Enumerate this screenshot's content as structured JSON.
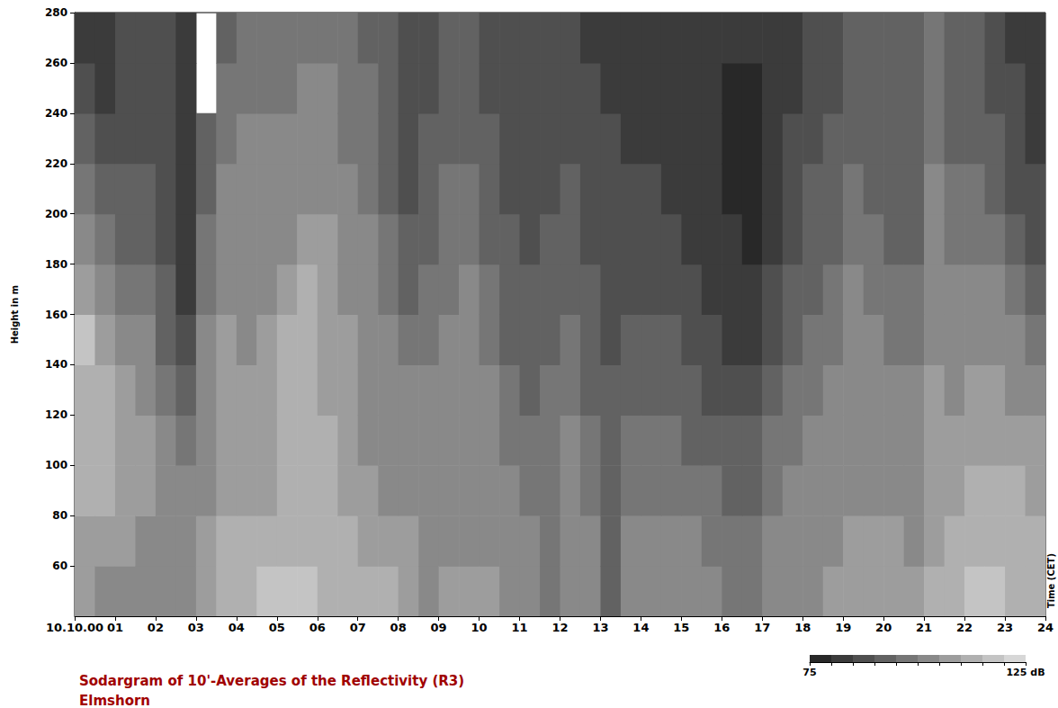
{
  "chart_data": {
    "type": "heatmap",
    "title": "Sodargram of 10'-Averages of the Reflectivity (R3)",
    "subtitle": "Elmshorn",
    "xlabel": "Time (CET)",
    "ylabel": "Height in m",
    "xlim": [
      0,
      24
    ],
    "xticks": [
      {
        "value": 0,
        "label": "10.10.00"
      },
      {
        "value": 1,
        "label": "01"
      },
      {
        "value": 2,
        "label": "02"
      },
      {
        "value": 3,
        "label": "03"
      },
      {
        "value": 4,
        "label": "04"
      },
      {
        "value": 5,
        "label": "05"
      },
      {
        "value": 6,
        "label": "06"
      },
      {
        "value": 7,
        "label": "07"
      },
      {
        "value": 8,
        "label": "08"
      },
      {
        "value": 9,
        "label": "09"
      },
      10,
      11,
      12,
      13,
      14,
      15,
      16,
      17,
      18,
      19,
      20,
      21,
      22,
      23,
      24
    ],
    "ylim": [
      40,
      280
    ],
    "yticks": [
      60,
      80,
      100,
      120,
      140,
      160,
      180,
      200,
      220,
      240,
      260,
      280
    ],
    "x_edges": [
      0,
      0.5,
      1,
      1.5,
      2,
      2.5,
      3,
      3.5,
      4,
      4.5,
      5,
      5.5,
      6,
      6.5,
      7,
      7.5,
      8,
      8.5,
      9,
      9.5,
      10,
      10.5,
      11,
      11.5,
      12,
      12.5,
      13,
      13.5,
      14,
      14.5,
      15,
      15.5,
      16,
      16.5,
      17,
      17.5,
      18,
      18.5,
      19,
      19.5,
      20,
      20.5,
      21,
      21.5,
      22,
      22.5,
      23,
      23.5,
      24
    ],
    "y_edges": [
      40,
      60,
      80,
      100,
      120,
      140,
      160,
      180,
      200,
      220,
      240,
      260,
      280
    ],
    "cells": [
      [
        106,
        108,
        110,
        110,
        112,
        115,
        108,
        100,
        95,
        90,
        86,
        84
      ],
      [
        104,
        108,
        110,
        112,
        110,
        108,
        102,
        96,
        90,
        86,
        84,
        82
      ],
      [
        102,
        106,
        108,
        108,
        106,
        104,
        98,
        94,
        90,
        88,
        86,
        85
      ],
      [
        100,
        104,
        106,
        106,
        104,
        100,
        96,
        92,
        90,
        88,
        87,
        86
      ],
      [
        102,
        104,
        104,
        102,
        98,
        94,
        90,
        88,
        86,
        85,
        85,
        85
      ],
      [
        104,
        104,
        102,
        98,
        94,
        88,
        84,
        82,
        82,
        83,
        84,
        84
      ],
      [
        108,
        106,
        104,
        104,
        102,
        100,
        98,
        96,
        94,
        92,
        null,
        null
      ],
      [
        112,
        110,
        108,
        108,
        108,
        106,
        104,
        102,
        100,
        97,
        95,
        93
      ],
      [
        114,
        112,
        108,
        106,
        106,
        104,
        104,
        104,
        102,
        100,
        98,
        96
      ],
      [
        116,
        112,
        108,
        108,
        108,
        106,
        104,
        102,
        100,
        100,
        98,
        97
      ],
      [
        116,
        114,
        110,
        110,
        110,
        110,
        108,
        104,
        102,
        100,
        99,
        98
      ],
      [
        116,
        114,
        112,
        112,
        112,
        112,
        110,
        108,
        104,
        102,
        100,
        99
      ],
      [
        114,
        112,
        110,
        110,
        108,
        108,
        108,
        108,
        104,
        102,
        100,
        98
      ],
      [
        112,
        110,
        108,
        108,
        106,
        106,
        104,
        102,
        100,
        98,
        97,
        96
      ],
      [
        110,
        108,
        106,
        104,
        104,
        102,
        102,
        100,
        98,
        96,
        95,
        94
      ],
      [
        110,
        108,
        104,
        104,
        102,
        100,
        98,
        96,
        94,
        92,
        92,
        92
      ],
      [
        108,
        106,
        104,
        102,
        100,
        96,
        92,
        90,
        88,
        88,
        88,
        88
      ],
      [
        104,
        100,
        100,
        100,
        100,
        98,
        96,
        94,
        92,
        90,
        88,
        87
      ],
      [
        106,
        104,
        104,
        102,
        100,
        100,
        98,
        98,
        96,
        94,
        92,
        90
      ],
      [
        106,
        104,
        102,
        102,
        100,
        100,
        100,
        98,
        96,
        94,
        92,
        90
      ],
      [
        106,
        104,
        102,
        100,
        100,
        98,
        96,
        94,
        92,
        90,
        88,
        87
      ],
      [
        104,
        102,
        100,
        98,
        96,
        94,
        92,
        90,
        88,
        88,
        87,
        86
      ],
      [
        102,
        100,
        98,
        96,
        94,
        92,
        90,
        88,
        87,
        86,
        86,
        86
      ],
      [
        96,
        98,
        98,
        98,
        96,
        94,
        92,
        90,
        88,
        86,
        85,
        85
      ],
      [
        100,
        100,
        100,
        100,
        98,
        96,
        94,
        92,
        90,
        88,
        87,
        86
      ],
      [
        100,
        100,
        98,
        96,
        94,
        92,
        90,
        88,
        86,
        85,
        85,
        84
      ],
      [
        94,
        94,
        94,
        92,
        90,
        88,
        86,
        86,
        85,
        85,
        84,
        84
      ],
      [
        100,
        100,
        98,
        96,
        94,
        90,
        88,
        86,
        85,
        84,
        84,
        84
      ],
      [
        102,
        100,
        98,
        96,
        94,
        92,
        88,
        86,
        85,
        84,
        84,
        84
      ],
      [
        102,
        100,
        98,
        96,
        92,
        90,
        88,
        86,
        84,
        83,
        83,
        83
      ],
      [
        102,
        100,
        98,
        94,
        90,
        88,
        86,
        84,
        82,
        82,
        82,
        82
      ],
      [
        100,
        98,
        96,
        92,
        88,
        86,
        84,
        82,
        80,
        80,
        80,
        80
      ],
      [
        98,
        96,
        94,
        90,
        86,
        84,
        82,
        80,
        79,
        79,
        79,
        80
      ],
      [
        98,
        96,
        94,
        90,
        86,
        82,
        80,
        79,
        78,
        78,
        79,
        80
      ],
      [
        100,
        100,
        98,
        96,
        92,
        88,
        86,
        84,
        82,
        82,
        82,
        82
      ],
      [
        102,
        102,
        100,
        98,
        96,
        94,
        90,
        88,
        86,
        85,
        84,
        84
      ],
      [
        104,
        104,
        102,
        100,
        98,
        96,
        94,
        92,
        90,
        88,
        87,
        86
      ],
      [
        106,
        104,
        104,
        102,
        100,
        98,
        96,
        94,
        92,
        90,
        88,
        87
      ],
      [
        108,
        106,
        104,
        104,
        102,
        100,
        100,
        98,
        96,
        94,
        92,
        90
      ],
      [
        108,
        106,
        104,
        102,
        100,
        100,
        98,
        96,
        94,
        92,
        90,
        90
      ],
      [
        108,
        106,
        104,
        102,
        100,
        98,
        96,
        94,
        92,
        90,
        90,
        90
      ],
      [
        106,
        104,
        102,
        100,
        100,
        98,
        96,
        94,
        92,
        92,
        92,
        92
      ],
      [
        110,
        108,
        106,
        106,
        106,
        104,
        102,
        100,
        100,
        98,
        96,
        96
      ],
      [
        112,
        110,
        108,
        106,
        104,
        102,
        100,
        98,
        96,
        94,
        92,
        92
      ],
      [
        116,
        114,
        110,
        108,
        106,
        104,
        100,
        98,
        96,
        94,
        92,
        90
      ],
      [
        118,
        114,
        112,
        108,
        106,
        102,
        100,
        96,
        92,
        90,
        88,
        88
      ],
      [
        114,
        112,
        110,
        108,
        104,
        100,
        96,
        92,
        88,
        86,
        85,
        84
      ],
      [
        112,
        110,
        108,
        106,
        102,
        98,
        92,
        88,
        86,
        84,
        83,
        82
      ]
    ],
    "colorbar": {
      "range": [
        75,
        125
      ],
      "ticks": [
        75,
        {
          "value": 125,
          "label": "125 dB"
        }
      ]
    }
  }
}
